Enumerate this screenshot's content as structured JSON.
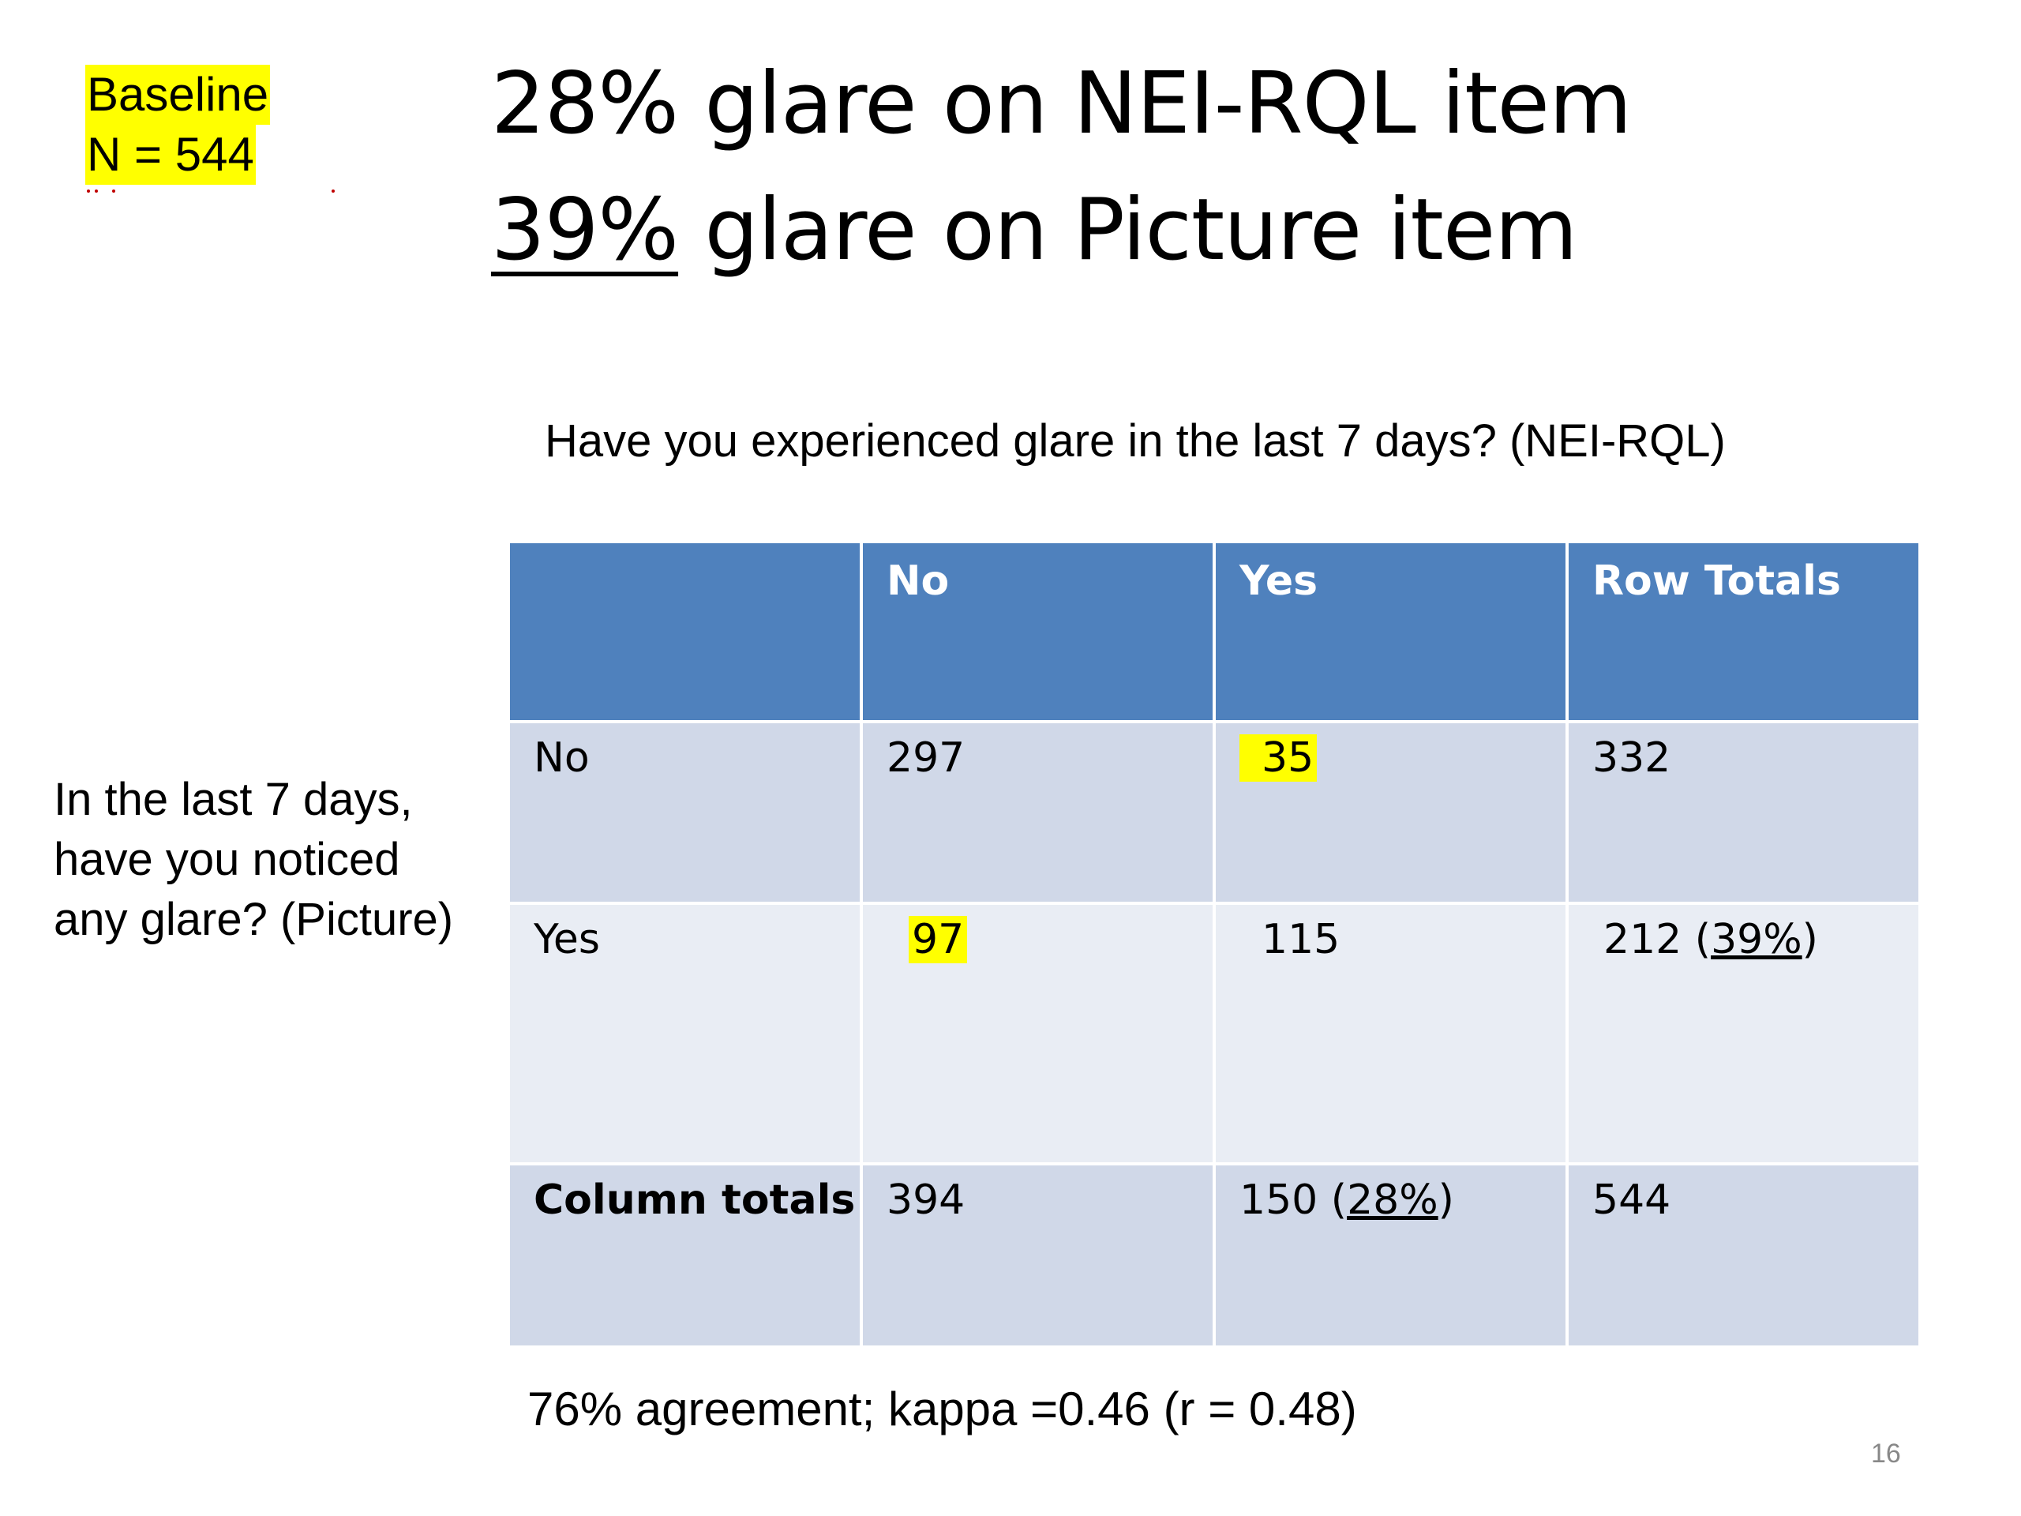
{
  "badge": {
    "line1": "Baseline",
    "line2": "N = 544"
  },
  "title": {
    "line1": "28% glare on NEI-RQL item",
    "line2_pct": "39%",
    "line2_rest": " glare on Picture item"
  },
  "column_question": "Have you experienced glare in the last 7 days? (NEI-RQL)",
  "row_question": {
    "line1": "In the last 7 days,",
    "line2": "have you noticed",
    "line3": "any glare? (Picture)"
  },
  "table": {
    "headers": [
      "",
      "No",
      "Yes",
      "Row Totals"
    ],
    "row_no": {
      "label": "No",
      "no": "297",
      "yes": "35",
      "total": "332"
    },
    "row_yes": {
      "label": "Yes",
      "no": "97",
      "yes": "115",
      "total_num": "212 (",
      "total_pct": "39%",
      "total_close": ")"
    },
    "row_totals": {
      "label": "Column totals",
      "no": "394",
      "yes_num": "150 (",
      "yes_pct": "28%",
      "yes_close": ")",
      "total": "544"
    }
  },
  "agreement": "76% agreement; kappa =0.46 (r = 0.48)",
  "slide_number": "16",
  "colors": {
    "header_blue": "#4f81bd",
    "row_dark": "#d0d8e8",
    "row_light": "#e9edf4",
    "highlight": "#ffff00"
  }
}
